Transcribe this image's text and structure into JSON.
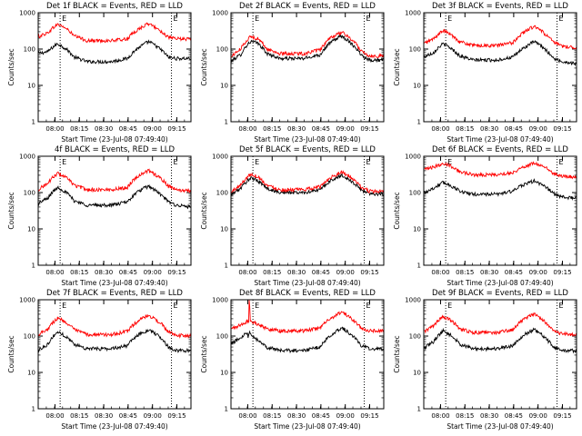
{
  "colors": {
    "events": "#000000",
    "lld": "#ff0000",
    "frame": "#000000",
    "marker": "#000000"
  },
  "shared": {
    "ylabel": "Counts/sec",
    "xlabel": "Start Time (23-Jul-08 07:49:40)",
    "ytick_labels": [
      "1",
      "10",
      "100",
      "1000"
    ],
    "ytick_values": [
      1,
      10,
      100,
      1000
    ],
    "ylim": [
      1,
      1000
    ],
    "y_scale": "log",
    "xtick_labels": [
      "08:00",
      "08:15",
      "08:30",
      "08:45",
      "09:00",
      "09:15"
    ],
    "xtick_minutes": [
      10.33,
      25.33,
      40.33,
      55.33,
      70.33,
      85.33
    ],
    "xlim_minutes": [
      0,
      94
    ],
    "marker_label": "E"
  },
  "chart_data": [
    {
      "type": "line",
      "title": "Det 1f BLACK = Events, RED = LLD",
      "markers_min": [
        13.5,
        82.0
      ],
      "series": [
        {
          "key": "events",
          "x": [
            0,
            6,
            12,
            16,
            22,
            30,
            45,
            55,
            62,
            68,
            75,
            80,
            85,
            94
          ],
          "y": [
            75,
            85,
            140,
            110,
            60,
            45,
            45,
            55,
            110,
            160,
            100,
            60,
            55,
            55
          ]
        },
        {
          "key": "lld",
          "x": [
            0,
            6,
            12,
            16,
            22,
            30,
            45,
            55,
            62,
            68,
            75,
            80,
            85,
            94
          ],
          "y": [
            220,
            280,
            480,
            400,
            230,
            170,
            170,
            190,
            360,
            500,
            320,
            210,
            190,
            190
          ]
        }
      ]
    },
    {
      "type": "line",
      "title": "Det 2f BLACK = Events, RED = LLD",
      "markers_min": [
        13.5,
        82.0
      ],
      "series": [
        {
          "key": "events",
          "x": [
            0,
            6,
            12,
            16,
            22,
            30,
            45,
            55,
            62,
            68,
            75,
            80,
            85,
            94
          ],
          "y": [
            45,
            70,
            160,
            150,
            75,
            55,
            55,
            70,
            160,
            230,
            130,
            70,
            50,
            50
          ]
        },
        {
          "key": "lld",
          "x": [
            0,
            6,
            12,
            16,
            22,
            30,
            45,
            55,
            62,
            68,
            75,
            80,
            85,
            94
          ],
          "y": [
            60,
            100,
            220,
            200,
            100,
            75,
            75,
            95,
            210,
            290,
            170,
            90,
            65,
            65
          ]
        }
      ]
    },
    {
      "type": "line",
      "title": "Det 3f BLACK = Events, RED = LLD",
      "markers_min": [
        13.5,
        82.0
      ],
      "series": [
        {
          "key": "events",
          "x": [
            0,
            6,
            12,
            16,
            22,
            30,
            45,
            55,
            62,
            68,
            75,
            80,
            85,
            94
          ],
          "y": [
            60,
            80,
            140,
            110,
            65,
            50,
            50,
            60,
            110,
            160,
            95,
            55,
            45,
            40
          ]
        },
        {
          "key": "lld",
          "x": [
            0,
            6,
            12,
            16,
            22,
            30,
            45,
            55,
            62,
            68,
            75,
            80,
            85,
            94
          ],
          "y": [
            140,
            190,
            320,
            260,
            160,
            125,
            125,
            150,
            300,
            420,
            250,
            150,
            120,
            110
          ]
        }
      ]
    },
    {
      "type": "line",
      "title": "4f BLACK = Events, RED = LLD",
      "markers_min": [
        13.5,
        82.0
      ],
      "series": [
        {
          "key": "events",
          "x": [
            0,
            6,
            12,
            16,
            22,
            30,
            45,
            55,
            62,
            68,
            75,
            80,
            85,
            94
          ],
          "y": [
            50,
            70,
            140,
            110,
            60,
            45,
            45,
            55,
            110,
            150,
            90,
            55,
            45,
            40
          ]
        },
        {
          "key": "lld",
          "x": [
            0,
            6,
            12,
            16,
            22,
            30,
            45,
            55,
            62,
            68,
            75,
            80,
            85,
            94
          ],
          "y": [
            120,
            180,
            340,
            280,
            160,
            120,
            120,
            140,
            300,
            400,
            250,
            150,
            120,
            110
          ]
        }
      ]
    },
    {
      "type": "line",
      "title": "Det 5f BLACK = Events, RED = LLD",
      "markers_min": [
        13.5,
        82.0
      ],
      "series": [
        {
          "key": "events",
          "x": [
            0,
            6,
            12,
            16,
            22,
            30,
            45,
            55,
            62,
            68,
            75,
            80,
            85,
            94
          ],
          "y": [
            85,
            130,
            250,
            220,
            130,
            100,
            100,
            120,
            220,
            300,
            190,
            120,
            95,
            90
          ]
        },
        {
          "key": "lld",
          "x": [
            0,
            6,
            12,
            16,
            22,
            30,
            45,
            55,
            62,
            68,
            75,
            80,
            85,
            94
          ],
          "y": [
            100,
            160,
            320,
            280,
            160,
            120,
            120,
            145,
            270,
            370,
            230,
            140,
            110,
            105
          ]
        }
      ]
    },
    {
      "type": "line",
      "title": "Det 6f BLACK = Events, RED = LLD",
      "markers_min": [
        13.5,
        82.0
      ],
      "series": [
        {
          "key": "events",
          "x": [
            0,
            6,
            12,
            16,
            22,
            30,
            45,
            55,
            62,
            68,
            75,
            80,
            85,
            94
          ],
          "y": [
            100,
            130,
            190,
            160,
            110,
            90,
            90,
            110,
            170,
            210,
            140,
            95,
            75,
            70
          ]
        },
        {
          "key": "lld",
          "x": [
            0,
            6,
            12,
            16,
            22,
            30,
            45,
            55,
            62,
            68,
            75,
            80,
            85,
            94
          ],
          "y": [
            420,
            500,
            640,
            560,
            380,
            310,
            310,
            360,
            520,
            650,
            480,
            330,
            280,
            270
          ]
        }
      ]
    },
    {
      "type": "line",
      "title": "Det 7f BLACK = Events, RED = LLD",
      "markers_min": [
        13.5,
        82.0
      ],
      "series": [
        {
          "key": "events",
          "x": [
            0,
            6,
            12,
            16,
            22,
            30,
            45,
            55,
            62,
            68,
            75,
            80,
            85,
            94
          ],
          "y": [
            40,
            60,
            130,
            105,
            60,
            45,
            45,
            55,
            110,
            150,
            90,
            50,
            40,
            40
          ]
        },
        {
          "key": "lld",
          "x": [
            0,
            6,
            12,
            16,
            22,
            30,
            45,
            55,
            62,
            68,
            75,
            80,
            85,
            94
          ],
          "y": [
            110,
            160,
            310,
            260,
            150,
            110,
            110,
            135,
            270,
            370,
            230,
            130,
            105,
            100
          ]
        }
      ]
    },
    {
      "type": "line",
      "title": "Det 8f BLACK = Events, RED = LLD",
      "markers_min": [
        13.5,
        82.0
      ],
      "series": [
        {
          "key": "events",
          "x": [
            0,
            6,
            10.3,
            10.6,
            11,
            12,
            13,
            16,
            22,
            30,
            45,
            55,
            62,
            68,
            75,
            80,
            85,
            94
          ],
          "y": [
            60,
            90,
            130,
            80,
            130,
            120,
            110,
            80,
            50,
            40,
            40,
            50,
            110,
            170,
            100,
            55,
            45,
            45
          ]
        },
        {
          "key": "lld",
          "x": [
            0,
            6,
            10.5,
            11,
            11.1,
            11.5,
            11.6,
            13,
            16,
            22,
            30,
            45,
            55,
            62,
            68,
            75,
            80,
            85,
            94
          ],
          "y": [
            160,
            200,
            260,
            260,
            1000,
            1000,
            260,
            250,
            220,
            160,
            140,
            140,
            170,
            320,
            450,
            280,
            170,
            140,
            140
          ]
        }
      ]
    },
    {
      "type": "line",
      "title": "Det 9f BLACK = Events, RED = LLD",
      "markers_min": [
        13.5,
        82.0
      ],
      "series": [
        {
          "key": "events",
          "x": [
            0,
            6,
            12,
            16,
            22,
            30,
            45,
            55,
            62,
            68,
            75,
            80,
            85,
            94
          ],
          "y": [
            45,
            70,
            140,
            110,
            60,
            45,
            45,
            55,
            110,
            150,
            85,
            50,
            40,
            40
          ]
        },
        {
          "key": "lld",
          "x": [
            0,
            6,
            12,
            16,
            22,
            30,
            45,
            55,
            62,
            68,
            75,
            80,
            85,
            94
          ],
          "y": [
            130,
            190,
            340,
            280,
            160,
            125,
            125,
            150,
            300,
            400,
            240,
            140,
            115,
            110
          ]
        }
      ]
    }
  ]
}
